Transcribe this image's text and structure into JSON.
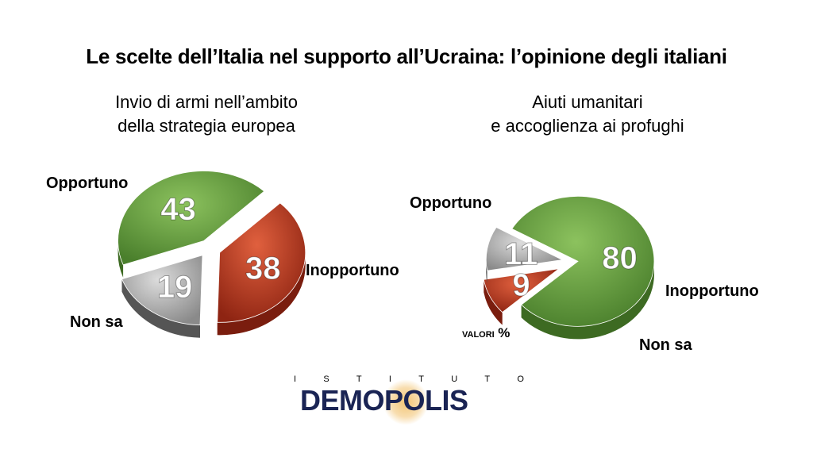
{
  "title": "Le scelte dell’Italia nel supporto all’Ucraina: l’opinione degli italiani",
  "chart_data": [
    {
      "type": "pie",
      "title_lines": [
        "Invio di armi nell’ambito",
        "della strategia europea"
      ],
      "slices": [
        {
          "label": "Opportuno",
          "value": 43,
          "color": "#5f9a3c"
        },
        {
          "label": "Inopportuno",
          "value": 38,
          "color": "#b83a22"
        },
        {
          "label": "Non sa",
          "value": 19,
          "color": "#9a9a9a"
        }
      ]
    },
    {
      "type": "pie",
      "title_lines": [
        "Aiuti umanitari",
        "e accoglienza ai profughi"
      ],
      "slices": [
        {
          "label": "Opportuno",
          "value": 80,
          "color": "#5f9a3c"
        },
        {
          "label": "Inopportuno",
          "value": 9,
          "color": "#b83a22"
        },
        {
          "label": "Non sa",
          "value": 11,
          "color": "#9a9a9a"
        }
      ]
    }
  ],
  "unit_note": {
    "small": "VALORI",
    "big": "%"
  },
  "logo": {
    "top_letters": [
      "I",
      "S",
      "T",
      "I",
      "T",
      "U",
      "T",
      "O"
    ],
    "name": "DEMOPOLIS"
  }
}
